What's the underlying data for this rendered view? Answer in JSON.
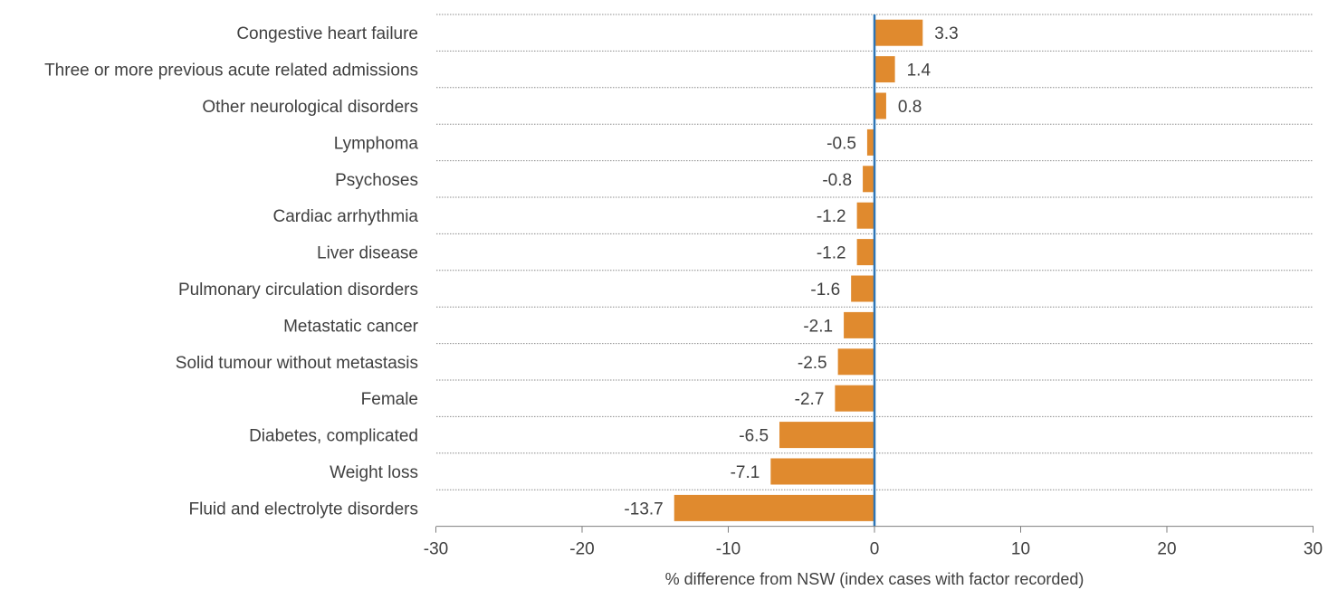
{
  "chart_data": {
    "type": "bar",
    "orientation": "horizontal",
    "categories": [
      "Congestive heart failure",
      "Three or more previous acute related admissions",
      "Other neurological disorders",
      "Lymphoma",
      "Psychoses",
      "Cardiac arrhythmia",
      "Liver disease",
      "Pulmonary circulation disorders",
      "Metastatic cancer",
      "Solid tumour without metastasis",
      "Female",
      "Diabetes, complicated",
      "Weight loss",
      "Fluid and electrolyte disorders"
    ],
    "values": [
      3.3,
      1.4,
      0.8,
      -0.5,
      -0.8,
      -1.2,
      -1.2,
      -1.6,
      -2.1,
      -2.5,
      -2.7,
      -6.5,
      -7.1,
      -13.7
    ],
    "value_labels": [
      "3.3",
      "1.4",
      "0.8",
      "-0.5",
      "-0.8",
      "-1.2",
      "-1.2",
      "-1.6",
      "-2.1",
      "-2.5",
      "-2.7",
      "-6.5",
      "-7.1",
      "-13.7"
    ],
    "xlabel": "% difference from NSW (index cases with factor recorded)",
    "xlim": [
      -30,
      30
    ],
    "xticks": [
      "-30",
      "-20",
      "-10",
      "0",
      "10",
      "20",
      "30"
    ],
    "grid": "dotted horizontal separators",
    "legend": "none",
    "colors": {
      "bar": "#E08A2E",
      "zero_line": "#2E75B6",
      "axis": "#7F7F7F",
      "grid": "#8C8C8C",
      "text": "#404040"
    }
  }
}
